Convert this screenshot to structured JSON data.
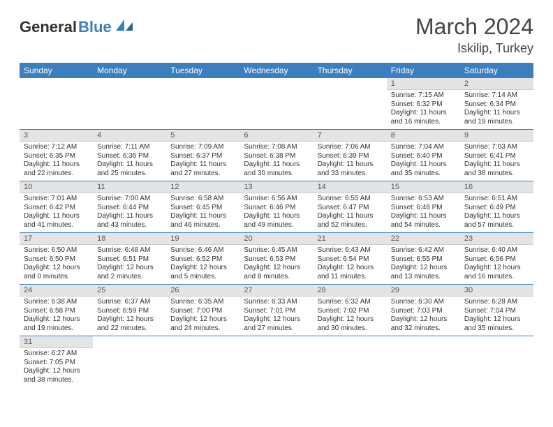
{
  "brand": {
    "name1": "General",
    "name2": "Blue"
  },
  "title": "March 2024",
  "location": "Iskilip, Turkey",
  "weekdays": [
    "Sunday",
    "Monday",
    "Tuesday",
    "Wednesday",
    "Thursday",
    "Friday",
    "Saturday"
  ],
  "colors": {
    "header_bg": "#3b7fbf",
    "header_fg": "#ffffff",
    "daynum_bg": "#e4e4e4",
    "row_border": "#3b7fbf"
  },
  "weeks": [
    [
      null,
      null,
      null,
      null,
      null,
      {
        "n": "1",
        "sr": "7:15 AM",
        "ss": "6:32 PM",
        "dl": "11 hours and 16 minutes."
      },
      {
        "n": "2",
        "sr": "7:14 AM",
        "ss": "6:34 PM",
        "dl": "11 hours and 19 minutes."
      }
    ],
    [
      {
        "n": "3",
        "sr": "7:12 AM",
        "ss": "6:35 PM",
        "dl": "11 hours and 22 minutes."
      },
      {
        "n": "4",
        "sr": "7:11 AM",
        "ss": "6:36 PM",
        "dl": "11 hours and 25 minutes."
      },
      {
        "n": "5",
        "sr": "7:09 AM",
        "ss": "6:37 PM",
        "dl": "11 hours and 27 minutes."
      },
      {
        "n": "6",
        "sr": "7:08 AM",
        "ss": "6:38 PM",
        "dl": "11 hours and 30 minutes."
      },
      {
        "n": "7",
        "sr": "7:06 AM",
        "ss": "6:39 PM",
        "dl": "11 hours and 33 minutes."
      },
      {
        "n": "8",
        "sr": "7:04 AM",
        "ss": "6:40 PM",
        "dl": "11 hours and 35 minutes."
      },
      {
        "n": "9",
        "sr": "7:03 AM",
        "ss": "6:41 PM",
        "dl": "11 hours and 38 minutes."
      }
    ],
    [
      {
        "n": "10",
        "sr": "7:01 AM",
        "ss": "6:42 PM",
        "dl": "11 hours and 41 minutes."
      },
      {
        "n": "11",
        "sr": "7:00 AM",
        "ss": "6:44 PM",
        "dl": "11 hours and 43 minutes."
      },
      {
        "n": "12",
        "sr": "6:58 AM",
        "ss": "6:45 PM",
        "dl": "11 hours and 46 minutes."
      },
      {
        "n": "13",
        "sr": "6:56 AM",
        "ss": "6:46 PM",
        "dl": "11 hours and 49 minutes."
      },
      {
        "n": "14",
        "sr": "6:55 AM",
        "ss": "6:47 PM",
        "dl": "11 hours and 52 minutes."
      },
      {
        "n": "15",
        "sr": "6:53 AM",
        "ss": "6:48 PM",
        "dl": "11 hours and 54 minutes."
      },
      {
        "n": "16",
        "sr": "6:51 AM",
        "ss": "6:49 PM",
        "dl": "11 hours and 57 minutes."
      }
    ],
    [
      {
        "n": "17",
        "sr": "6:50 AM",
        "ss": "6:50 PM",
        "dl": "12 hours and 0 minutes."
      },
      {
        "n": "18",
        "sr": "6:48 AM",
        "ss": "6:51 PM",
        "dl": "12 hours and 2 minutes."
      },
      {
        "n": "19",
        "sr": "6:46 AM",
        "ss": "6:52 PM",
        "dl": "12 hours and 5 minutes."
      },
      {
        "n": "20",
        "sr": "6:45 AM",
        "ss": "6:53 PM",
        "dl": "12 hours and 8 minutes."
      },
      {
        "n": "21",
        "sr": "6:43 AM",
        "ss": "6:54 PM",
        "dl": "12 hours and 11 minutes."
      },
      {
        "n": "22",
        "sr": "6:42 AM",
        "ss": "6:55 PM",
        "dl": "12 hours and 13 minutes."
      },
      {
        "n": "23",
        "sr": "6:40 AM",
        "ss": "6:56 PM",
        "dl": "12 hours and 16 minutes."
      }
    ],
    [
      {
        "n": "24",
        "sr": "6:38 AM",
        "ss": "6:58 PM",
        "dl": "12 hours and 19 minutes."
      },
      {
        "n": "25",
        "sr": "6:37 AM",
        "ss": "6:59 PM",
        "dl": "12 hours and 22 minutes."
      },
      {
        "n": "26",
        "sr": "6:35 AM",
        "ss": "7:00 PM",
        "dl": "12 hours and 24 minutes."
      },
      {
        "n": "27",
        "sr": "6:33 AM",
        "ss": "7:01 PM",
        "dl": "12 hours and 27 minutes."
      },
      {
        "n": "28",
        "sr": "6:32 AM",
        "ss": "7:02 PM",
        "dl": "12 hours and 30 minutes."
      },
      {
        "n": "29",
        "sr": "6:30 AM",
        "ss": "7:03 PM",
        "dl": "12 hours and 32 minutes."
      },
      {
        "n": "30",
        "sr": "6:28 AM",
        "ss": "7:04 PM",
        "dl": "12 hours and 35 minutes."
      }
    ],
    [
      {
        "n": "31",
        "sr": "6:27 AM",
        "ss": "7:05 PM",
        "dl": "12 hours and 38 minutes."
      },
      null,
      null,
      null,
      null,
      null,
      null
    ]
  ],
  "labels": {
    "sunrise": "Sunrise:",
    "sunset": "Sunset:",
    "daylight": "Daylight:"
  }
}
